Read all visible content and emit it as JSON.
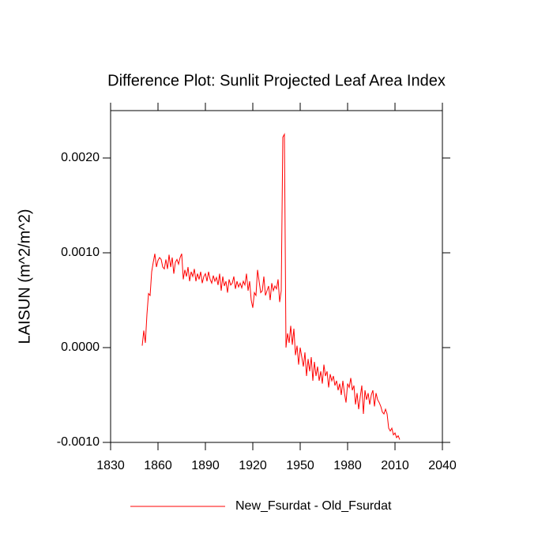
{
  "chart_data": {
    "type": "line",
    "title": "Difference Plot: Sunlit Projected Leaf Area Index",
    "y_label": "LAISUN  (m^2/m^2)",
    "x": [
      1850,
      1851,
      1852,
      1853,
      1854,
      1855,
      1856,
      1857,
      1858,
      1859,
      1860,
      1861,
      1862,
      1863,
      1864,
      1865,
      1866,
      1867,
      1868,
      1869,
      1870,
      1871,
      1872,
      1873,
      1874,
      1875,
      1876,
      1877,
      1878,
      1879,
      1880,
      1881,
      1882,
      1883,
      1884,
      1885,
      1886,
      1887,
      1888,
      1889,
      1890,
      1891,
      1892,
      1893,
      1894,
      1895,
      1896,
      1897,
      1898,
      1899,
      1900,
      1901,
      1902,
      1903,
      1904,
      1905,
      1906,
      1907,
      1908,
      1909,
      1910,
      1911,
      1912,
      1913,
      1914,
      1915,
      1916,
      1917,
      1918,
      1919,
      1920,
      1921,
      1922,
      1923,
      1924,
      1925,
      1926,
      1927,
      1928,
      1929,
      1930,
      1931,
      1932,
      1933,
      1934,
      1935,
      1936,
      1937,
      1938,
      1939,
      1940,
      1941,
      1942,
      1943,
      1944,
      1945,
      1946,
      1947,
      1948,
      1949,
      1950,
      1951,
      1952,
      1953,
      1954,
      1955,
      1956,
      1957,
      1958,
      1959,
      1960,
      1961,
      1962,
      1963,
      1964,
      1965,
      1966,
      1967,
      1968,
      1969,
      1970,
      1971,
      1972,
      1973,
      1974,
      1975,
      1976,
      1977,
      1978,
      1979,
      1980,
      1981,
      1982,
      1983,
      1984,
      1985,
      1986,
      1987,
      1988,
      1989,
      1990,
      1991,
      1992,
      1993,
      1994,
      1995,
      1996,
      1997,
      1998,
      1999,
      2000,
      2001,
      2002,
      2003,
      2004,
      2005,
      2006,
      2007,
      2008,
      2009,
      2010,
      2011,
      2012,
      2013
    ],
    "series": [
      {
        "name": "New_Fsurdat - Old_Fsurdat",
        "color": "#ff0000",
        "values": [
          2e-05,
          0.00018,
          5e-05,
          0.00035,
          0.00057,
          0.00055,
          0.0008,
          0.0009,
          0.00099,
          0.00085,
          0.00092,
          0.00095,
          0.00093,
          0.00085,
          0.00083,
          0.00093,
          0.00083,
          0.00098,
          0.00085,
          0.00095,
          0.00078,
          0.0009,
          0.00093,
          0.00088,
          0.00095,
          0.00099,
          0.00072,
          0.00082,
          0.00075,
          0.00085,
          0.0007,
          0.0008,
          0.00075,
          0.00083,
          0.0007,
          0.00078,
          0.00072,
          0.0008,
          0.00068,
          0.00075,
          0.00078,
          0.0007,
          0.0008,
          0.00072,
          0.00068,
          0.00076,
          0.0007,
          0.00074,
          0.00066,
          0.00078,
          0.0006,
          0.00075,
          0.00065,
          0.0007,
          0.00058,
          0.00072,
          0.00066,
          0.00068,
          0.00075,
          0.00062,
          0.0007,
          0.00064,
          0.00068,
          0.00063,
          0.0007,
          0.00066,
          0.00078,
          0.0006,
          0.0007,
          0.0005,
          0.00042,
          0.00058,
          0.00055,
          0.00082,
          0.0007,
          0.00058,
          0.0006,
          0.00075,
          0.00055,
          0.0006,
          0.00065,
          0.0005,
          0.00068,
          0.0006,
          0.00065,
          0.00062,
          0.00072,
          0.00048,
          0.0006,
          0.00222,
          0.00225,
          0,
          0.00015,
          5e-05,
          0.00023,
          3e-05,
          0.0002,
          -8e-05,
          2e-05,
          -0.00018,
          0,
          -0.0001,
          -0.0002,
          -5e-05,
          -0.0003,
          -0.00012,
          -0.00025,
          -0.0001,
          -0.00035,
          -0.00015,
          -0.0003,
          -0.0002,
          -0.00035,
          -0.00025,
          -0.00038,
          -0.00018,
          -0.0003,
          -0.00025,
          -0.00042,
          -0.00028,
          -0.00035,
          -0.0003,
          -0.0004,
          -0.00035,
          -0.00045,
          -0.00038,
          -0.0005,
          -0.00035,
          -0.00048,
          -0.00058,
          -0.00038,
          -0.00042,
          -0.00032,
          -0.00045,
          -0.0004,
          -0.0006,
          -0.00048,
          -0.00065,
          -0.00052,
          -0.0004,
          -0.0007,
          -0.00045,
          -0.00055,
          -0.00048,
          -0.0006,
          -0.0005,
          -0.00045,
          -0.00062,
          -0.00048,
          -0.00055,
          -0.00058,
          -0.00062,
          -0.00068,
          -0.0007,
          -0.00065,
          -0.0007,
          -0.00085,
          -0.00088,
          -0.00085,
          -0.00092,
          -0.0009,
          -0.00095,
          -0.00093,
          -0.00097
        ]
      }
    ],
    "xlim": [
      1830,
      2040
    ],
    "xticks": [
      1830,
      1860,
      1890,
      1920,
      1950,
      1980,
      2010,
      2040
    ],
    "ylim": [
      -0.001,
      0.0025
    ],
    "yticks": [
      {
        "value": -0.001,
        "label": "-0.0010"
      },
      {
        "value": 0,
        "label": "0.0000"
      },
      {
        "value": 0.001,
        "label": "0.0010"
      },
      {
        "value": 0.002,
        "label": "0.0020"
      }
    ],
    "grid": false,
    "legend": "bottom"
  }
}
